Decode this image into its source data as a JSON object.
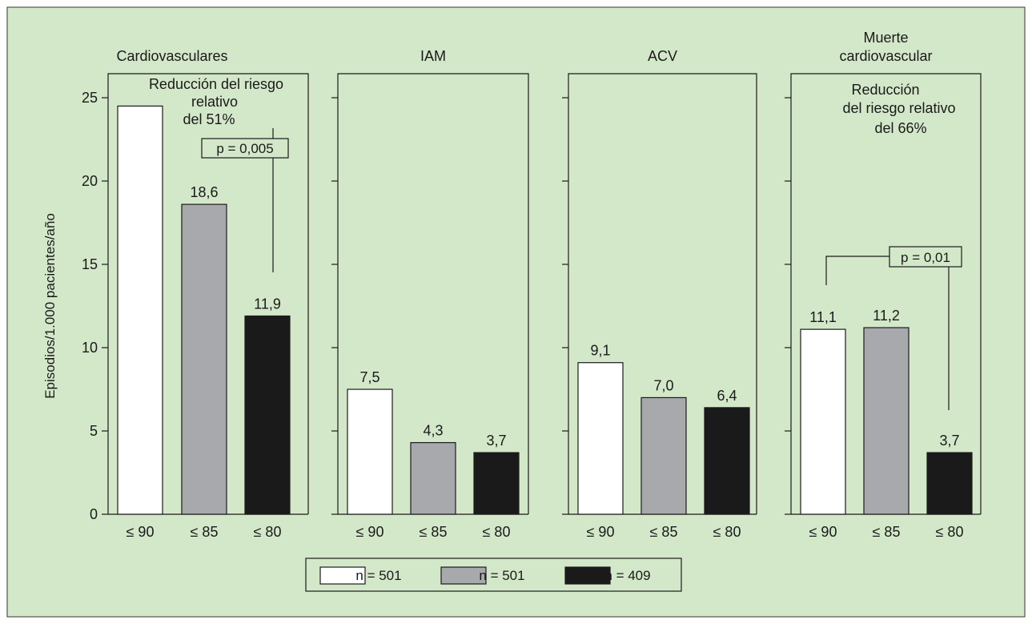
{
  "chart_data": {
    "type": "bar",
    "ylabel": "Episodios/1.000 pacientes/año",
    "ylim": [
      0,
      25
    ],
    "yticks": [
      "0",
      "5",
      "10",
      "15",
      "20",
      "25"
    ],
    "categories": [
      "≤ 90",
      "≤ 85",
      "≤ 80"
    ],
    "background": "#d3e8c9",
    "series_colors": [
      "#ffffff",
      "#a7a9ac",
      "#1a1a1a"
    ],
    "panels": [
      {
        "title": "Cardiovasculares",
        "values": [
          24.5,
          18.6,
          11.9
        ],
        "labels": [
          "",
          "18,6",
          "11,9"
        ],
        "annotation": [
          "Reducción del riesgo",
          "relativo",
          "del 51%"
        ],
        "p_value": "p = 0,005"
      },
      {
        "title": "IAM",
        "values": [
          7.5,
          4.3,
          3.7
        ],
        "labels": [
          "7,5",
          "4,3",
          "3,7"
        ]
      },
      {
        "title": "ACV",
        "values": [
          9.1,
          7.0,
          6.4
        ],
        "labels": [
          "9,1",
          "7,0",
          "6,4"
        ]
      },
      {
        "title": [
          "Muerte",
          "cardiovascular"
        ],
        "values": [
          11.1,
          11.2,
          3.7
        ],
        "labels": [
          "11,1",
          "11,2",
          "3,7"
        ],
        "annotation": [
          "Reducción",
          "del riesgo relativo",
          "del 66%"
        ],
        "p_value": "p = 0,01"
      }
    ],
    "legend": [
      "n =  501",
      "n =  501",
      "n =  409"
    ]
  }
}
